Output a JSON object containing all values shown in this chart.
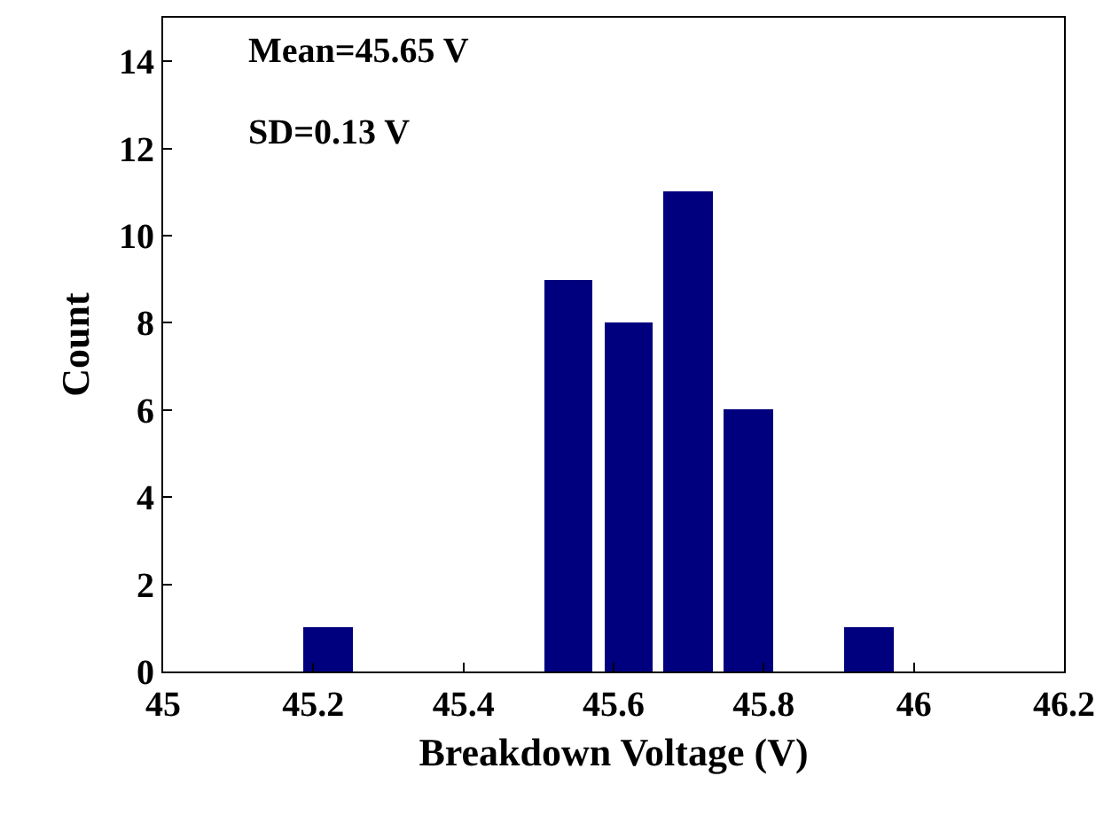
{
  "chart_data": {
    "type": "histogram",
    "xlabel": "Breakdown Voltage (V)",
    "ylabel": "Count",
    "bins": [
      45.18,
      45.26,
      45.34,
      45.42,
      45.5,
      45.58,
      45.66,
      45.74,
      45.82,
      45.9,
      45.98
    ],
    "values": [
      1,
      0,
      0,
      0,
      9,
      8,
      11,
      6,
      0,
      1
    ],
    "color": "#00007f",
    "xlim": [
      45,
      46.2
    ],
    "xticks": [
      45,
      45.2,
      45.4,
      45.6,
      45.8,
      46,
      46.2
    ],
    "ylim": [
      0,
      15
    ],
    "yticks": [
      0,
      2,
      4,
      6,
      8,
      10,
      12,
      14
    ],
    "grid": false,
    "annotations": [
      "Mean=45.65 V",
      "SD=0.13 V"
    ]
  }
}
